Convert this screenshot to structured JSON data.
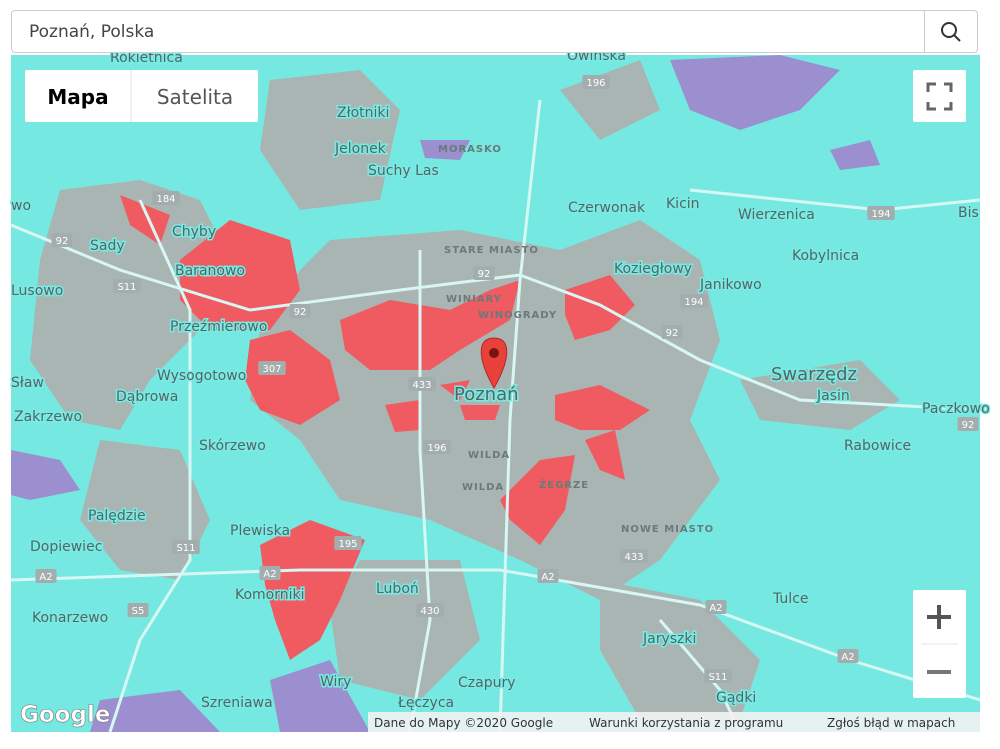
{
  "search": {
    "query": "Poznań, Polska"
  },
  "map_type": {
    "options": [
      "Mapa",
      "Satelita"
    ]
  },
  "places": [
    "Rokietnica",
    "Owińska",
    "Złotniki",
    "Jelonek",
    "MORASKO",
    "Suchy Las",
    "Czerwonak",
    "Kicin",
    "Wierzenica",
    "Chyby",
    "Sady",
    "STARE MIASTO",
    "Koziegłowy",
    "Janikowo",
    "Kobylnica",
    "Baranowo",
    "Lusowo",
    "WINIARY",
    "WINOGRADY",
    "Przeźmierowo",
    "Swarzędz",
    "Wysogotowo",
    "Poznań",
    "Jasin",
    "Dąbrowa",
    "Zakrzewo",
    "Skórzewo",
    "Rabowice",
    "WILDA",
    "WILDA",
    "ŻEGRZE",
    "Palędzie",
    "NOWE MIASTO",
    "Plewiska",
    "Dopiewiec",
    "Luboń",
    "Tulce",
    "Komorniki",
    "Konarzewo",
    "Jaryszki",
    "Wiry",
    "Czapury",
    "Szreniawa",
    "Łęczyca",
    "Gądki",
    "Paczkowo",
    "Bis",
    "Sław",
    "wo"
  ],
  "roads": [
    "196",
    "184",
    "194",
    "92",
    "S11",
    "92",
    "92",
    "194",
    "92",
    "307",
    "433",
    "196",
    "S11",
    "A2",
    "195",
    "A2",
    "A2",
    "433",
    "S5",
    "430",
    "A2",
    "A2",
    "S11",
    "92"
  ],
  "logo": "Google",
  "footer": [
    "Dane do Mapy ©2020 Google",
    "Warunki korzystania z programu",
    "Zgłoś błąd w mapach"
  ]
}
